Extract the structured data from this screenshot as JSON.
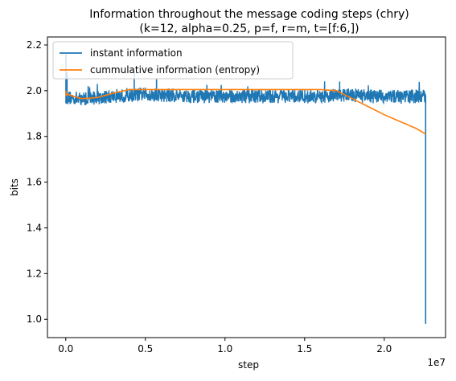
{
  "chart_data": {
    "type": "line",
    "title": "Information throughout the message coding steps (chry)",
    "subtitle": "(k=12, alpha=0.25, p=f, r=m, t=[f:6,])",
    "xlabel": "step",
    "ylabel": "bits",
    "x_offset_label": "1e7",
    "xlim": [
      -1150000,
      23850000
    ],
    "ylim": [
      0.92,
      2.235
    ],
    "x_ticks": [
      0.0,
      0.5,
      1.0,
      1.5,
      2.0
    ],
    "x_tick_labels": [
      "0.0",
      "0.5",
      "1.0",
      "1.5",
      "2.0"
    ],
    "y_ticks": [
      1.0,
      1.2,
      1.4,
      1.6,
      1.8,
      2.0,
      2.2
    ],
    "y_tick_labels": [
      "1.0",
      "1.2",
      "1.4",
      "1.6",
      "1.8",
      "2.0",
      "2.2"
    ],
    "grid": false,
    "legend": "top-left",
    "series": [
      {
        "name": "instant information",
        "color": "#1f77b4",
        "style": "noisy band",
        "x": [
          0,
          1000000,
          2000000,
          3000000,
          4000000,
          5000000,
          6000000,
          7000000,
          8000000,
          9000000,
          10000000,
          11000000,
          12000000,
          13000000,
          14000000,
          15000000,
          16000000,
          17000000,
          18000000,
          19000000,
          20000000,
          21000000,
          22000000,
          22600000
        ],
        "y_mean": [
          1.97,
          1.965,
          1.97,
          1.975,
          1.98,
          1.985,
          1.98,
          1.98,
          1.975,
          1.975,
          1.975,
          1.975,
          1.975,
          1.975,
          1.975,
          1.975,
          1.975,
          1.98,
          1.98,
          1.975,
          1.975,
          1.975,
          1.975,
          1.975
        ],
        "y_spread": 0.03,
        "spikes": [
          {
            "x": 10000,
            "y": 2.16
          },
          {
            "x": 80000,
            "y": 2.08
          },
          {
            "x": 4300000,
            "y": 2.08
          },
          {
            "x": 5700000,
            "y": 2.05
          },
          {
            "x": 17200000,
            "y": 2.04
          },
          {
            "x": 22600000,
            "y": 0.98
          }
        ]
      },
      {
        "name": "cummulative information (entropy)",
        "color": "#ff7f0e",
        "x": [
          0,
          20000,
          100000,
          500000,
          1000000,
          2000000,
          3000000,
          4000000,
          5000000,
          6000000,
          8000000,
          10000000,
          12000000,
          14000000,
          16000000,
          17000000,
          18000000,
          19000000,
          20000000,
          21000000,
          22000000,
          22600000
        ],
        "y": [
          2.0,
          1.98,
          1.985,
          1.975,
          1.965,
          1.97,
          1.99,
          2.005,
          2.005,
          2.005,
          2.005,
          2.005,
          2.005,
          2.005,
          2.005,
          2.0,
          1.965,
          1.93,
          1.895,
          1.865,
          1.835,
          1.81
        ]
      }
    ]
  }
}
